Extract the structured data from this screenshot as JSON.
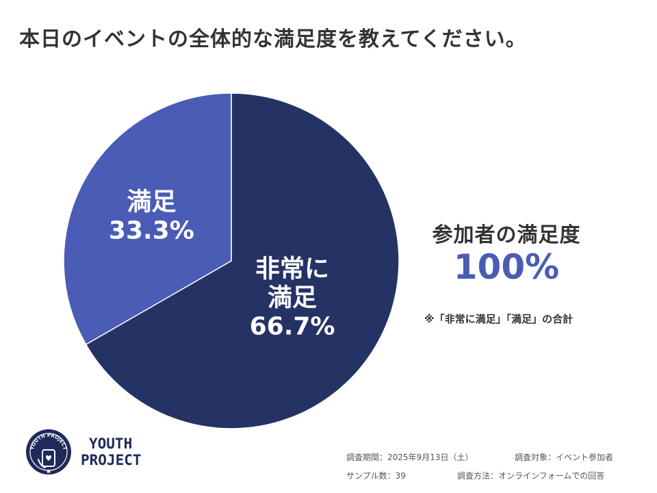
{
  "title": "本日のイベントの全体的な満足度を教えてください。",
  "chart_data": {
    "type": "pie",
    "title": "本日のイベントの全体的な満足度を教えてください。",
    "slices": [
      {
        "label_lines": [
          "非常に",
          "満足"
        ],
        "percent_label": "66.7%",
        "value": 66.7,
        "color": "#253364"
      },
      {
        "label_lines": [
          "満足"
        ],
        "percent_label": "33.3%",
        "value": 33.3,
        "color": "#4a5cb5"
      }
    ]
  },
  "summary": {
    "label": "参加者の満足度",
    "value": "100%",
    "note": "※「非常に満足」「満足」の合計"
  },
  "brand": {
    "line1": "YOUTH",
    "line2": "PROJECT",
    "badge_text": "YOUTH PROJECT",
    "badge_color": "#1f2a5a"
  },
  "meta": {
    "period": "調査期間：2025年9月13日（土）",
    "target": "調査対象：イベント参加者",
    "sample": "サンプル数：39",
    "method": "調査方法：オンラインフォームでの回答"
  }
}
